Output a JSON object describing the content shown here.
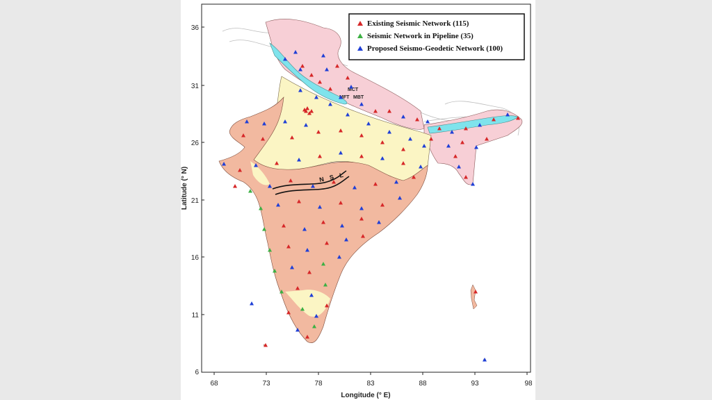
{
  "map": {
    "x_axis_title": "Longitude (° E)",
    "y_axis_title": "Latitude (° N)",
    "x_ticks": [
      "68",
      "73",
      "78",
      "83",
      "88",
      "93",
      "98"
    ],
    "y_ticks": [
      "36",
      "31",
      "26",
      "21",
      "16",
      "11",
      "6"
    ],
    "legend": [
      {
        "label": "Existing Seismic Network (115)",
        "color": "#d62728"
      },
      {
        "label": "Seismic Network in Pipeline (35)",
        "color": "#3cb043"
      },
      {
        "label": "Proposed Seismo-Geodetic Network (100)",
        "color": "#1f3fd6"
      }
    ],
    "features": {
      "mct": "MCT",
      "mbt": "MBT",
      "mft": "MFT",
      "nsl": "N S L"
    },
    "colors": {
      "peninsula": "#f2b9a0",
      "plains": "#fbf5c4",
      "himalaya": "#f7cfd6",
      "foothill": "#7fe3ec"
    }
  }
}
